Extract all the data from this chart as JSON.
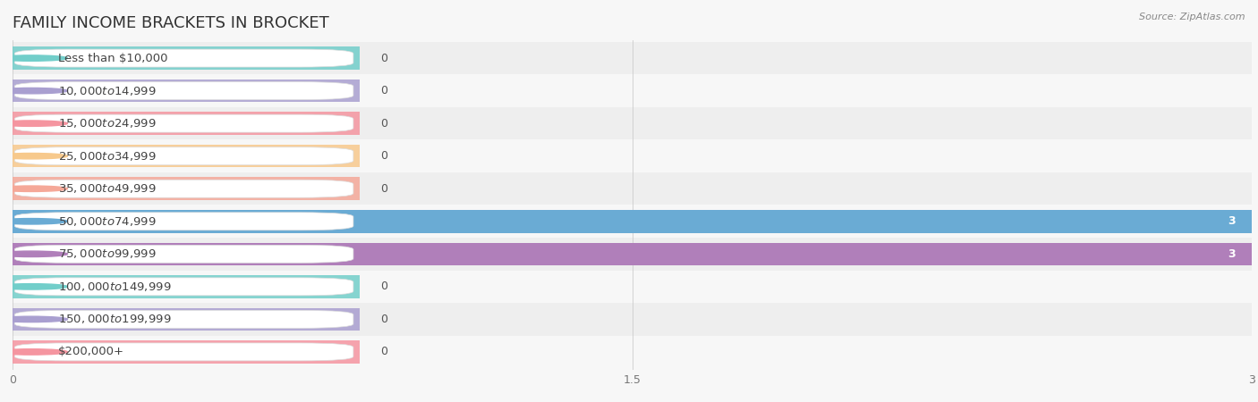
{
  "title": "FAMILY INCOME BRACKETS IN BROCKET",
  "source": "Source: ZipAtlas.com",
  "categories": [
    "Less than $10,000",
    "$10,000 to $14,999",
    "$15,000 to $24,999",
    "$25,000 to $34,999",
    "$35,000 to $49,999",
    "$50,000 to $74,999",
    "$75,000 to $99,999",
    "$100,000 to $149,999",
    "$150,000 to $199,999",
    "$200,000+"
  ],
  "values": [
    0,
    0,
    0,
    0,
    0,
    3,
    3,
    0,
    0,
    0
  ],
  "bar_colors": [
    "#72ceca",
    "#a99fd0",
    "#f595a0",
    "#f7c98c",
    "#f5a898",
    "#6aabd4",
    "#b07fba",
    "#72ceca",
    "#a99fd0",
    "#f595a0"
  ],
  "background_color": "#f7f7f7",
  "xlim": [
    0,
    3
  ],
  "xticks": [
    0,
    1.5,
    3
  ],
  "title_fontsize": 13,
  "label_fontsize": 9.5,
  "value_fontsize": 9
}
